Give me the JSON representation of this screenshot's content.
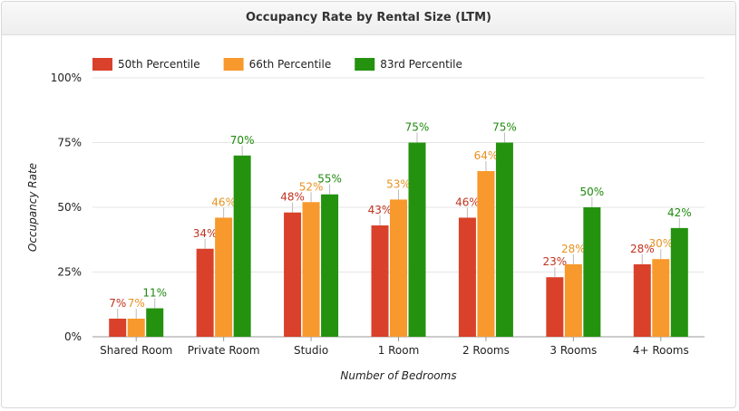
{
  "chart_data": {
    "type": "bar",
    "title": "Occupancy Rate by Rental Size (LTM)",
    "xlabel": "Number of Bedrooms",
    "ylabel": "Occupancy Rate",
    "categories": [
      "Shared Room",
      "Private Room",
      "Studio",
      "1 Room",
      "2 Rooms",
      "3 Rooms",
      "4+ Rooms"
    ],
    "series": [
      {
        "name": "50th Percentile",
        "color": "#d9412a",
        "label_color": "#c0321e",
        "values": [
          7,
          34,
          48,
          43,
          46,
          23,
          28
        ]
      },
      {
        "name": "66th Percentile",
        "color": "#f7992c",
        "label_color": "#e8911f",
        "values": [
          7,
          46,
          52,
          53,
          64,
          28,
          30
        ]
      },
      {
        "name": "83rd Percentile",
        "color": "#24920f",
        "label_color": "#1e8a0c",
        "values": [
          11,
          70,
          55,
          75,
          75,
          50,
          42
        ]
      }
    ],
    "yticks": [
      {
        "value": 0,
        "label": "0%"
      },
      {
        "value": 25,
        "label": "25%"
      },
      {
        "value": 50,
        "label": "50%"
      },
      {
        "value": 75,
        "label": "75%"
      },
      {
        "value": 100,
        "label": "100%"
      }
    ],
    "ylim": [
      0,
      100
    ],
    "value_suffix": "%",
    "legend_position": "top-left",
    "grid": true
  }
}
